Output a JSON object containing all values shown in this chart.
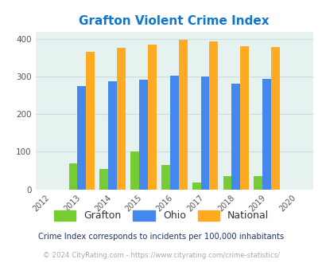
{
  "title": "Grafton Violent Crime Index",
  "all_years": [
    2012,
    2013,
    2014,
    2015,
    2016,
    2017,
    2018,
    2019,
    2020
  ],
  "bar_years": [
    2013,
    2014,
    2015,
    2016,
    2017,
    2018,
    2019
  ],
  "grafton": [
    70,
    55,
    100,
    65,
    18,
    35,
    35
  ],
  "ohio": [
    275,
    287,
    292,
    302,
    300,
    282,
    295
  ],
  "national": [
    367,
    376,
    385,
    398,
    393,
    382,
    378
  ],
  "grafton_color": "#77cc33",
  "ohio_color": "#4488ee",
  "national_color": "#ffaa22",
  "bg_color": "#e6f2f0",
  "title_color": "#1177cc",
  "ylim": [
    0,
    420
  ],
  "yticks": [
    0,
    100,
    200,
    300,
    400
  ],
  "bar_width": 0.28,
  "footnote1": "Crime Index corresponds to incidents per 100,000 inhabitants",
  "footnote2": "© 2024 CityRating.com - https://www.cityrating.com/crime-statistics/",
  "legend_labels": [
    "Grafton",
    "Ohio",
    "National"
  ],
  "grid_color": "#ccdddd",
  "footnote1_color": "#223366",
  "footnote2_color": "#aaaaaa"
}
